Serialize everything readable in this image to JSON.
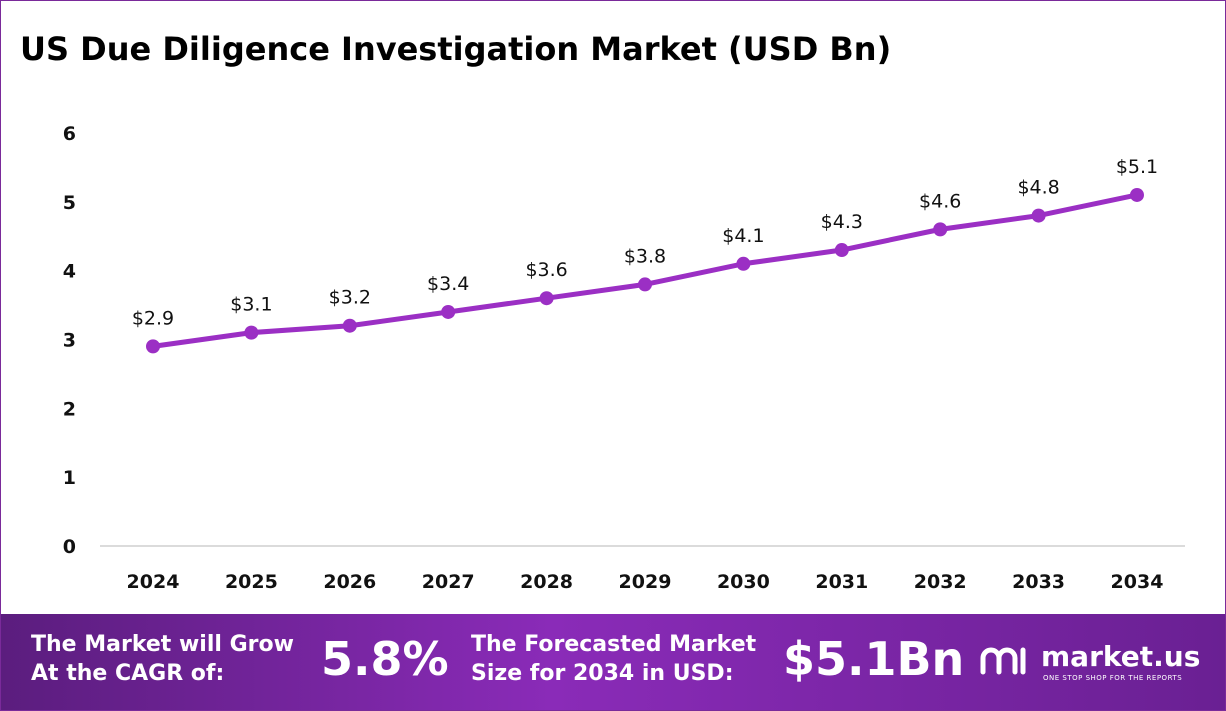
{
  "chart_data": {
    "type": "line",
    "title": "US Due Diligence Investigation Market (USD Bn)",
    "categories": [
      "2024",
      "2025",
      "2026",
      "2027",
      "2028",
      "2029",
      "2030",
      "2031",
      "2032",
      "2033",
      "2034"
    ],
    "values": [
      2.9,
      3.1,
      3.2,
      3.4,
      3.6,
      3.8,
      4.1,
      4.3,
      4.6,
      4.8,
      5.1
    ],
    "value_labels": [
      "$2.9",
      "$3.1",
      "$3.2",
      "$3.4",
      "$3.6",
      "$3.8",
      "$4.1",
      "$4.3",
      "$4.6",
      "$4.8",
      "$5.1"
    ],
    "color": "#9b2fc4",
    "ylim": [
      0,
      6
    ],
    "yticks": [
      0,
      1,
      2,
      3,
      4,
      5,
      6
    ],
    "grid": false
  },
  "footer": {
    "cagr_label": [
      "The Market will Grow",
      "At the CAGR of:"
    ],
    "cagr_value": "5.8%",
    "forecast_label": [
      "The Forecasted Market",
      "Size for 2034 in USD:"
    ],
    "forecast_value": "$5.1Bn",
    "brand": "market.us",
    "tagline": "ONE STOP SHOP FOR THE REPORTS"
  }
}
